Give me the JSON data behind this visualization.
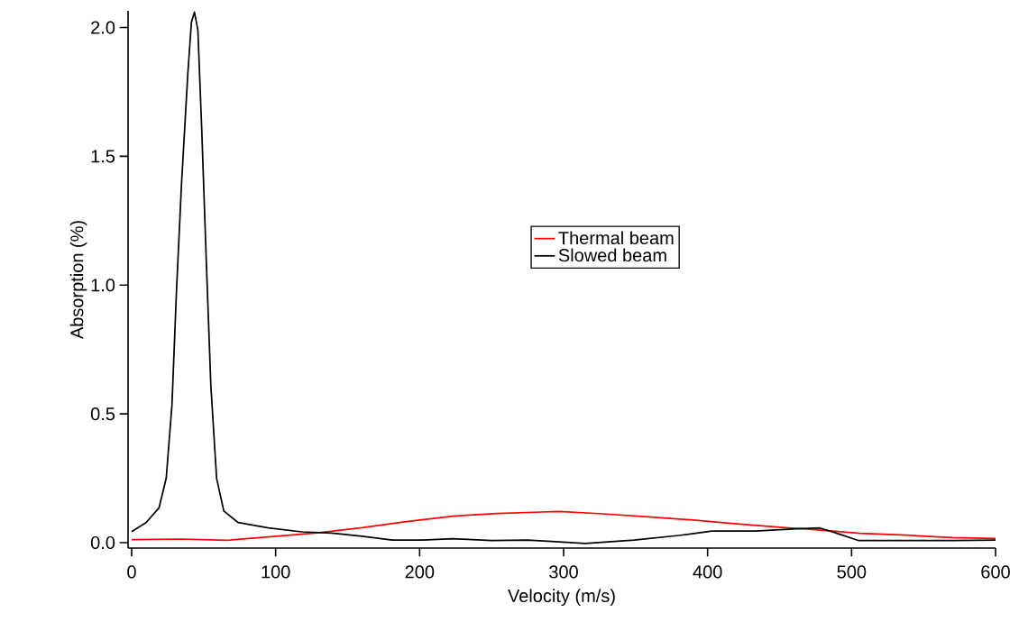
{
  "chart_data": {
    "type": "line",
    "xlabel": "Velocity (m/s)",
    "ylabel": "Absorption (%)",
    "xlim": [
      -2.5,
      600
    ],
    "ylim": [
      -0.021,
      2.065
    ],
    "xticks": [
      0,
      100,
      200,
      300,
      400,
      500,
      600
    ],
    "yticks": [
      {
        "value": 0,
        "label": "0.0"
      },
      {
        "value": 0.5,
        "label": "0.5"
      },
      {
        "value": 1,
        "label": "1.0"
      },
      {
        "value": 1.5,
        "label": "1.5"
      },
      {
        "value": 2,
        "label": "2.0"
      }
    ],
    "legend": "center",
    "series": [
      {
        "name": "Thermal beam",
        "color": "#ff0000",
        "x": [
          0,
          35,
          66,
          97,
          129,
          160,
          191,
          223,
          254,
          285,
          297,
          327,
          359,
          390,
          422,
          454,
          475,
          506,
          538,
          570,
          600
        ],
        "values": [
          0.012,
          0.014,
          0.009,
          0.023,
          0.038,
          0.058,
          0.082,
          0.103,
          0.113,
          0.119,
          0.121,
          0.112,
          0.1,
          0.088,
          0.072,
          0.058,
          0.05,
          0.036,
          0.029,
          0.02,
          0.016
        ]
      },
      {
        "name": "Slowed beam",
        "color": "#000000",
        "x": [
          0,
          10,
          19,
          24,
          28,
          31,
          34.6,
          39,
          41.5,
          43.6,
          46,
          48.7,
          51.8,
          55,
          59,
          64,
          74,
          95,
          118,
          139,
          160,
          181,
          202,
          223,
          250,
          275,
          297,
          315,
          349,
          380,
          403,
          433,
          465,
          478,
          488,
          505,
          539,
          570,
          600
        ],
        "values": [
          0.043,
          0.078,
          0.135,
          0.25,
          0.535,
          0.96,
          1.39,
          1.82,
          2.02,
          2.06,
          1.99,
          1.6,
          1.1,
          0.61,
          0.25,
          0.123,
          0.078,
          0.057,
          0.042,
          0.037,
          0.025,
          0.01,
          0.01,
          0.015,
          0.008,
          0.01,
          0.003,
          -0.003,
          0.01,
          0.028,
          0.045,
          0.045,
          0.055,
          0.057,
          0.04,
          0.008,
          0.008,
          0.008,
          0.01
        ]
      }
    ]
  }
}
